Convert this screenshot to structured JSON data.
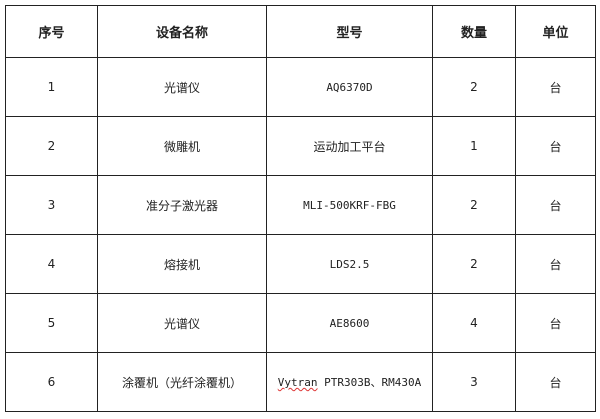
{
  "table": {
    "headers": [
      "序号",
      "设备名称",
      "型号",
      "数量",
      "单位"
    ],
    "rows": [
      {
        "no": "1",
        "name": "光谱仪",
        "model": "AQ6370D",
        "qty": "2",
        "unit": "台"
      },
      {
        "no": "2",
        "name": "微雕机",
        "model": "运动加工平台",
        "qty": "1",
        "unit": "台"
      },
      {
        "no": "3",
        "name": "准分子激光器",
        "model": "MLI-500KRF-FBG",
        "qty": "2",
        "unit": "台"
      },
      {
        "no": "4",
        "name": "熔接机",
        "model": "LDS2.5",
        "qty": "2",
        "unit": "台"
      },
      {
        "no": "5",
        "name": "光谱仪",
        "model": "AE8600",
        "qty": "4",
        "unit": "台"
      },
      {
        "no": "6",
        "name": "涂覆机（光纤涂覆机）",
        "model_prefix": "Vytran",
        "model": " PTR303B、RM430A",
        "qty": "3",
        "unit": "台"
      }
    ]
  }
}
